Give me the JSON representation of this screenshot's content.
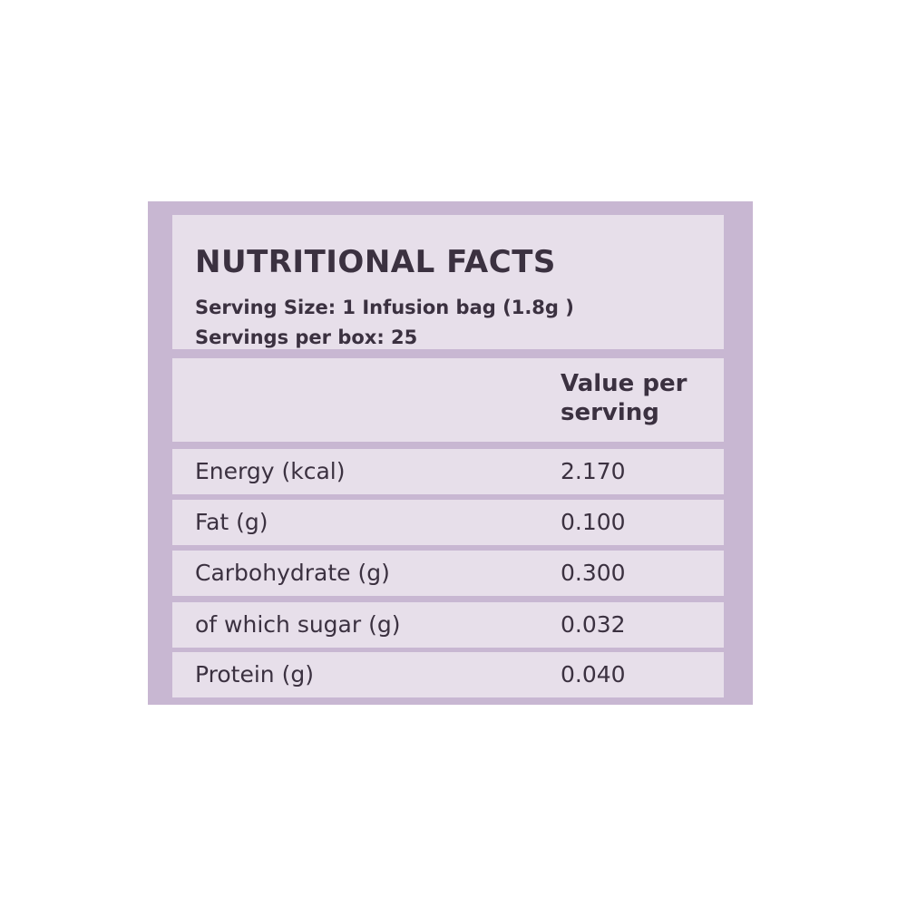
{
  "header": {
    "title": "NUTRITIONAL FACTS",
    "serving_size": "Serving Size: 1 Infusion bag (1.8g )",
    "servings_per_box": "Servings per box: 25"
  },
  "table": {
    "column_header": [
      "Value per",
      "serving"
    ],
    "rows": [
      [
        "Energy (kcal)",
        "2.170"
      ],
      [
        "Fat (g)",
        "0.100"
      ],
      [
        "Carbohydrate (g)",
        "0.300"
      ],
      [
        "of which sugar (g)",
        "0.032"
      ],
      [
        "Protein (g)",
        "0.040"
      ]
    ]
  }
}
